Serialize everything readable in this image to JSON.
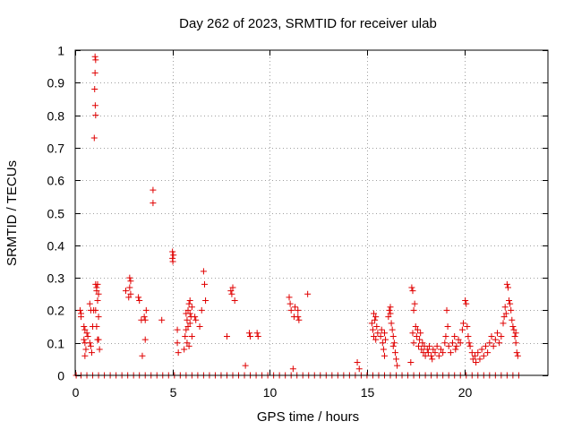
{
  "chart_data": {
    "type": "scatter",
    "title": "Day 262 of 2023, SRMTID for receiver ulab",
    "xlabel": "GPS time / hours",
    "ylabel": "SRMTID / TECUs",
    "xlim": [
      0,
      24.3
    ],
    "ylim": [
      0,
      1
    ],
    "grid": true,
    "x_ticks": [
      0,
      5,
      10,
      15,
      20
    ],
    "x_tick_labels": [
      "0",
      "5",
      "10",
      "15",
      "20"
    ],
    "y_ticks": [
      0,
      0.1,
      0.2,
      0.3,
      0.4,
      0.5,
      0.6,
      0.7,
      0.8,
      0.9,
      1
    ],
    "y_tick_labels": [
      "0",
      "0.1",
      "0.2",
      "0.3",
      "0.4",
      "0.5",
      "0.6",
      "0.7",
      "0.8",
      "0.9",
      "1"
    ],
    "marker_color": "#e00000",
    "series": [
      {
        "name": "SRMTID",
        "marker": "+",
        "points": [
          [
            0.25,
            0.2
          ],
          [
            0.3,
            0.19
          ],
          [
            0.3,
            0.18
          ],
          [
            0.45,
            0.15
          ],
          [
            0.5,
            0.14
          ],
          [
            0.45,
            0.11
          ],
          [
            0.5,
            0.1
          ],
          [
            0.55,
            0.08
          ],
          [
            0.5,
            0.06
          ],
          [
            0.6,
            0.13
          ],
          [
            0.65,
            0.12
          ],
          [
            0.75,
            0.22
          ],
          [
            0.8,
            0.2
          ],
          [
            0.75,
            0.1
          ],
          [
            0.8,
            0.09
          ],
          [
            0.85,
            0.07
          ],
          [
            0.95,
            0.2
          ],
          [
            0.9,
            0.15
          ],
          [
            1.02,
            0.98
          ],
          [
            1.05,
            0.97
          ],
          [
            1.02,
            0.93
          ],
          [
            1.0,
            0.88
          ],
          [
            1.03,
            0.83
          ],
          [
            1.05,
            0.8
          ],
          [
            0.98,
            0.73
          ],
          [
            1.05,
            0.28
          ],
          [
            1.1,
            0.27
          ],
          [
            1.15,
            0.28
          ],
          [
            1.1,
            0.26
          ],
          [
            1.2,
            0.25
          ],
          [
            1.15,
            0.23
          ],
          [
            1.05,
            0.2
          ],
          [
            1.2,
            0.18
          ],
          [
            1.1,
            0.15
          ],
          [
            1.15,
            0.11
          ],
          [
            1.2,
            0.11
          ],
          [
            1.25,
            0.08
          ],
          [
            2.6,
            0.26
          ],
          [
            2.8,
            0.3
          ],
          [
            2.85,
            0.29
          ],
          [
            2.8,
            0.27
          ],
          [
            2.85,
            0.25
          ],
          [
            2.75,
            0.24
          ],
          [
            3.25,
            0.24
          ],
          [
            3.3,
            0.23
          ],
          [
            3.4,
            0.17
          ],
          [
            3.45,
            0.06
          ],
          [
            3.55,
            0.18
          ],
          [
            3.6,
            0.17
          ],
          [
            3.65,
            0.2
          ],
          [
            3.6,
            0.11
          ],
          [
            4.0,
            0.57
          ],
          [
            4.0,
            0.53
          ],
          [
            4.45,
            0.17
          ],
          [
            5.0,
            0.38
          ],
          [
            5.05,
            0.37
          ],
          [
            5.0,
            0.36
          ],
          [
            5.02,
            0.35
          ],
          [
            5.25,
            0.14
          ],
          [
            5.25,
            0.1
          ],
          [
            5.3,
            0.07
          ],
          [
            5.6,
            0.08
          ],
          [
            5.65,
            0.12
          ],
          [
            5.7,
            0.14
          ],
          [
            5.75,
            0.17
          ],
          [
            5.8,
            0.2
          ],
          [
            5.85,
            0.22
          ],
          [
            5.9,
            0.23
          ],
          [
            5.75,
            0.1
          ],
          [
            5.85,
            0.09
          ],
          [
            5.9,
            0.16
          ],
          [
            5.95,
            0.18
          ],
          [
            6.0,
            0.12
          ],
          [
            5.8,
            0.15
          ],
          [
            5.9,
            0.19
          ],
          [
            5.7,
            0.19
          ],
          [
            6.0,
            0.21
          ],
          [
            6.15,
            0.18
          ],
          [
            6.2,
            0.17
          ],
          [
            6.4,
            0.15
          ],
          [
            6.5,
            0.2
          ],
          [
            6.6,
            0.32
          ],
          [
            6.65,
            0.28
          ],
          [
            6.7,
            0.23
          ],
          [
            7.8,
            0.12
          ],
          [
            8.0,
            0.26
          ],
          [
            8.05,
            0.25
          ],
          [
            8.1,
            0.27
          ],
          [
            8.2,
            0.23
          ],
          [
            8.75,
            0.03
          ],
          [
            8.95,
            0.13
          ],
          [
            9.0,
            0.12
          ],
          [
            9.35,
            0.13
          ],
          [
            9.4,
            0.12
          ],
          [
            11.0,
            0.24
          ],
          [
            11.05,
            0.22
          ],
          [
            11.1,
            0.2
          ],
          [
            11.2,
            0.02
          ],
          [
            11.25,
            0.18
          ],
          [
            11.3,
            0.21
          ],
          [
            11.45,
            0.18
          ],
          [
            11.5,
            0.17
          ],
          [
            11.45,
            0.2
          ],
          [
            11.95,
            0.25
          ],
          [
            14.5,
            0.04
          ],
          [
            14.6,
            0.02
          ],
          [
            15.25,
            0.16
          ],
          [
            15.3,
            0.14
          ],
          [
            15.35,
            0.12
          ],
          [
            15.4,
            0.17
          ],
          [
            15.45,
            0.18
          ],
          [
            15.5,
            0.15
          ],
          [
            15.55,
            0.13
          ],
          [
            15.35,
            0.19
          ],
          [
            15.45,
            0.11
          ],
          [
            15.7,
            0.12
          ],
          [
            15.8,
            0.1
          ],
          [
            15.85,
            0.08
          ],
          [
            15.9,
            0.13
          ],
          [
            15.95,
            0.11
          ],
          [
            15.75,
            0.14
          ],
          [
            15.9,
            0.06
          ],
          [
            16.1,
            0.18
          ],
          [
            16.15,
            0.2
          ],
          [
            16.2,
            0.19
          ],
          [
            16.25,
            0.16
          ],
          [
            16.3,
            0.14
          ],
          [
            16.35,
            0.12
          ],
          [
            16.4,
            0.1
          ],
          [
            16.45,
            0.07
          ],
          [
            16.5,
            0.05
          ],
          [
            16.55,
            0.03
          ],
          [
            16.2,
            0.21
          ],
          [
            16.35,
            0.09
          ],
          [
            17.3,
            0.27
          ],
          [
            17.35,
            0.26
          ],
          [
            17.4,
            0.2
          ],
          [
            17.45,
            0.22
          ],
          [
            17.35,
            0.13
          ],
          [
            17.4,
            0.1
          ],
          [
            17.25,
            0.04
          ],
          [
            17.5,
            0.15
          ],
          [
            17.55,
            0.12
          ],
          [
            17.6,
            0.14
          ],
          [
            17.65,
            0.09
          ],
          [
            17.7,
            0.11
          ],
          [
            17.75,
            0.13
          ],
          [
            17.8,
            0.08
          ],
          [
            17.85,
            0.1
          ],
          [
            17.9,
            0.07
          ],
          [
            17.95,
            0.09
          ],
          [
            18.0,
            0.06
          ],
          [
            18.1,
            0.08
          ],
          [
            18.15,
            0.07
          ],
          [
            18.2,
            0.09
          ],
          [
            18.3,
            0.06
          ],
          [
            18.35,
            0.05
          ],
          [
            18.4,
            0.08
          ],
          [
            18.5,
            0.07
          ],
          [
            18.6,
            0.09
          ],
          [
            18.7,
            0.06
          ],
          [
            18.8,
            0.08
          ],
          [
            18.9,
            0.07
          ],
          [
            19.0,
            0.1
          ],
          [
            19.05,
            0.12
          ],
          [
            19.1,
            0.2
          ],
          [
            19.15,
            0.15
          ],
          [
            19.2,
            0.09
          ],
          [
            19.3,
            0.07
          ],
          [
            19.4,
            0.1
          ],
          [
            19.5,
            0.12
          ],
          [
            19.55,
            0.08
          ],
          [
            19.6,
            0.09
          ],
          [
            19.7,
            0.11
          ],
          [
            19.8,
            0.1
          ],
          [
            19.9,
            0.14
          ],
          [
            19.95,
            0.16
          ],
          [
            20.05,
            0.23
          ],
          [
            20.1,
            0.22
          ],
          [
            20.15,
            0.15
          ],
          [
            20.2,
            0.12
          ],
          [
            20.25,
            0.1
          ],
          [
            20.3,
            0.09
          ],
          [
            20.4,
            0.07
          ],
          [
            20.45,
            0.05
          ],
          [
            20.55,
            0.06
          ],
          [
            20.6,
            0.04
          ],
          [
            20.7,
            0.07
          ],
          [
            20.8,
            0.05
          ],
          [
            20.9,
            0.08
          ],
          [
            21.0,
            0.06
          ],
          [
            21.1,
            0.09
          ],
          [
            21.2,
            0.07
          ],
          [
            21.3,
            0.1
          ],
          [
            21.4,
            0.12
          ],
          [
            21.5,
            0.09
          ],
          [
            21.6,
            0.11
          ],
          [
            21.7,
            0.13
          ],
          [
            21.8,
            0.1
          ],
          [
            21.9,
            0.12
          ],
          [
            22.0,
            0.16
          ],
          [
            22.05,
            0.18
          ],
          [
            22.1,
            0.21
          ],
          [
            22.15,
            0.19
          ],
          [
            22.2,
            0.28
          ],
          [
            22.25,
            0.27
          ],
          [
            22.3,
            0.23
          ],
          [
            22.35,
            0.22
          ],
          [
            22.4,
            0.2
          ],
          [
            22.45,
            0.17
          ],
          [
            22.5,
            0.15
          ],
          [
            22.55,
            0.14
          ],
          [
            22.6,
            0.12
          ],
          [
            22.65,
            0.1
          ],
          [
            22.7,
            0.07
          ],
          [
            22.75,
            0.06
          ],
          [
            22.65,
            0.13
          ],
          [
            0.05,
            0
          ],
          [
            0.3,
            0
          ],
          [
            0.6,
            0
          ],
          [
            0.9,
            0
          ],
          [
            1.2,
            0
          ],
          [
            1.5,
            0
          ],
          [
            1.8,
            0
          ],
          [
            2.1,
            0
          ],
          [
            2.4,
            0
          ],
          [
            2.7,
            0
          ],
          [
            3.0,
            0
          ],
          [
            3.3,
            0
          ],
          [
            3.6,
            0
          ],
          [
            3.9,
            0
          ],
          [
            4.2,
            0
          ],
          [
            4.5,
            0
          ],
          [
            4.8,
            0
          ],
          [
            5.1,
            0
          ],
          [
            5.4,
            0
          ],
          [
            5.7,
            0
          ],
          [
            6.0,
            0
          ],
          [
            6.3,
            0
          ],
          [
            6.6,
            0
          ],
          [
            6.9,
            0
          ],
          [
            7.2,
            0
          ],
          [
            7.5,
            0
          ],
          [
            7.8,
            0
          ],
          [
            8.1,
            0
          ],
          [
            8.4,
            0
          ],
          [
            8.7,
            0
          ],
          [
            9.0,
            0
          ],
          [
            9.3,
            0
          ],
          [
            9.6,
            0
          ],
          [
            9.9,
            0
          ],
          [
            10.2,
            0
          ],
          [
            10.5,
            0
          ],
          [
            10.8,
            0
          ],
          [
            11.1,
            0
          ],
          [
            11.4,
            0
          ],
          [
            11.7,
            0
          ],
          [
            12.0,
            0
          ],
          [
            12.3,
            0
          ],
          [
            12.6,
            0
          ],
          [
            12.9,
            0
          ],
          [
            13.2,
            0
          ],
          [
            13.5,
            0
          ],
          [
            13.8,
            0
          ],
          [
            14.1,
            0
          ],
          [
            14.4,
            0
          ],
          [
            14.7,
            0
          ],
          [
            15.0,
            0
          ],
          [
            15.3,
            0
          ],
          [
            15.6,
            0
          ],
          [
            15.9,
            0
          ],
          [
            16.2,
            0
          ],
          [
            16.5,
            0
          ],
          [
            16.8,
            0
          ],
          [
            17.1,
            0
          ],
          [
            17.4,
            0
          ],
          [
            17.7,
            0
          ],
          [
            18.0,
            0
          ],
          [
            18.3,
            0
          ],
          [
            18.6,
            0
          ],
          [
            18.9,
            0
          ],
          [
            19.2,
            0
          ],
          [
            19.5,
            0
          ],
          [
            19.8,
            0
          ],
          [
            20.1,
            0
          ],
          [
            20.4,
            0
          ],
          [
            20.7,
            0
          ],
          [
            21.0,
            0
          ],
          [
            21.3,
            0
          ],
          [
            21.6,
            0
          ],
          [
            21.9,
            0
          ],
          [
            22.2,
            0
          ],
          [
            22.5,
            0
          ],
          [
            22.8,
            0
          ]
        ]
      }
    ]
  }
}
